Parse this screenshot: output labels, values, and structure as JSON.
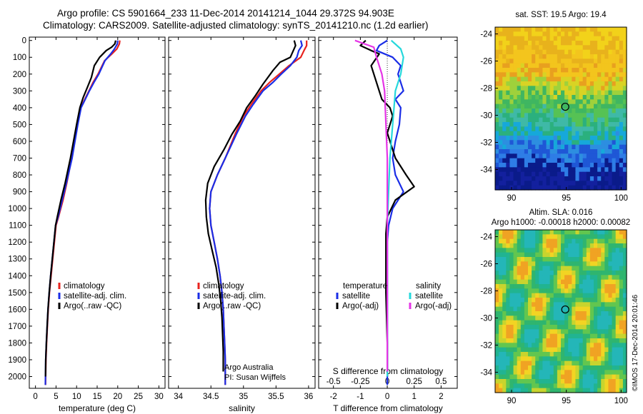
{
  "header": {
    "line1": "Argo profile: CS 5901664_233 11-Dec-2014 20141214_1044 29.372S 94.903E",
    "line2": "Climatology: CARS2009. Satellite-adjusted climatology: synTS_20141210.nc (1.2d earlier)"
  },
  "credits": {
    "org": "Argo Australia",
    "pi": "PI: Susan Wijffels",
    "copyright": "©IMOS 17-Dec-2014 20:01:46"
  },
  "colors": {
    "climatology": "#e8231e",
    "satellite": "#1a2de6",
    "argo": "#000000",
    "sat_salinity": "#25d8dc",
    "argo_salinity": "#e534e6"
  },
  "chart_data": [
    {
      "type": "line",
      "panel": "temperature",
      "xlabel": "temperature (deg C)",
      "xticks": [
        0,
        5,
        10,
        15,
        20,
        25,
        30
      ],
      "xlim": [
        -1.5,
        31.5
      ],
      "yticks": [
        0,
        100,
        200,
        300,
        400,
        500,
        600,
        700,
        800,
        900,
        1000,
        1100,
        1200,
        1300,
        1400,
        1500,
        1600,
        1700,
        1800,
        1900,
        2000
      ],
      "ylim": [
        2070,
        -20
      ],
      "y_reversed": true,
      "legend": [
        "climatology",
        "satellite-adj. clim.",
        "Argo(..raw -QC)"
      ],
      "series": [
        {
          "name": "climatology",
          "color": "#e8231e",
          "x": [
            20.5,
            20.4,
            19.8,
            18.6,
            16.8,
            15.2,
            14.0,
            13.0,
            12.0,
            11.0,
            10.2,
            8.8,
            7.6,
            6.7,
            5.6,
            5.0,
            4.6,
            4.2,
            3.8,
            3.4,
            3.1,
            2.9,
            2.7,
            2.55,
            2.45
          ],
          "y": [
            0,
            20,
            50,
            80,
            120,
            200,
            250,
            300,
            350,
            400,
            500,
            700,
            850,
            950,
            1050,
            1100,
            1200,
            1300,
            1400,
            1500,
            1600,
            1700,
            1800,
            1900,
            2050
          ]
        },
        {
          "name": "satellite-adj. clim.",
          "color": "#1a2de6",
          "x": [
            20.0,
            19.9,
            19.2,
            18.3,
            16.9,
            15.4,
            14.2,
            13.1,
            12.1,
            11.1,
            10.3,
            8.9,
            7.5,
            6.5,
            5.5,
            4.9,
            4.5,
            4.1,
            3.7,
            3.35,
            3.05,
            2.85,
            2.65,
            2.5,
            2.4
          ],
          "y": [
            0,
            20,
            50,
            80,
            120,
            200,
            250,
            300,
            350,
            400,
            500,
            700,
            850,
            950,
            1050,
            1100,
            1200,
            1300,
            1400,
            1500,
            1600,
            1700,
            1800,
            1900,
            2050
          ]
        },
        {
          "name": "Argo(..raw -QC)",
          "color": "#000000",
          "x": [
            19.5,
            19.3,
            18.5,
            17.2,
            15.6,
            14.3,
            13.6,
            12.6,
            11.6,
            10.8,
            10.0,
            8.5,
            7.2,
            6.2,
            5.3,
            4.9,
            4.5,
            4.1,
            3.7,
            3.35,
            3.05,
            2.85,
            2.65,
            2.5,
            2.45
          ],
          "y": [
            0,
            20,
            40,
            60,
            100,
            150,
            220,
            280,
            340,
            400,
            500,
            700,
            850,
            950,
            1050,
            1100,
            1200,
            1300,
            1400,
            1500,
            1600,
            1700,
            1800,
            1900,
            2000
          ]
        }
      ]
    },
    {
      "type": "line",
      "panel": "salinity",
      "xlabel": "salinity",
      "xticks": [
        34,
        34.5,
        35,
        35.5,
        36
      ],
      "xlim": [
        33.85,
        36.1
      ],
      "yticks": [
        0,
        100,
        200,
        300,
        400,
        500,
        600,
        700,
        800,
        900,
        1000,
        1100,
        1200,
        1300,
        1400,
        1500,
        1600,
        1700,
        1800,
        1900,
        2000
      ],
      "ylim": [
        2070,
        -20
      ],
      "y_reversed": true,
      "legend": [
        "climatology",
        "satellite-adj. clim.",
        "Argo(..raw -QC)"
      ],
      "series": [
        {
          "name": "climatology",
          "color": "#e8231e",
          "x": [
            35.97,
            35.97,
            35.93,
            35.88,
            35.7,
            35.55,
            35.4,
            35.27,
            35.12,
            35.0,
            34.88,
            34.72,
            34.6,
            34.5,
            34.48,
            34.5,
            34.55,
            34.6,
            34.64,
            34.67,
            34.69,
            34.7,
            34.71,
            34.72,
            34.72
          ],
          "y": [
            0,
            30,
            60,
            100,
            150,
            200,
            250,
            300,
            380,
            450,
            550,
            700,
            800,
            900,
            1000,
            1100,
            1200,
            1300,
            1400,
            1500,
            1600,
            1700,
            1800,
            1900,
            2050
          ]
        },
        {
          "name": "satellite-adj. clim.",
          "color": "#1a2de6",
          "x": [
            35.88,
            35.9,
            35.85,
            35.82,
            35.72,
            35.58,
            35.45,
            35.3,
            35.15,
            35.03,
            34.9,
            34.72,
            34.6,
            34.5,
            34.48,
            34.5,
            34.55,
            34.6,
            34.64,
            34.67,
            34.69,
            34.7,
            34.71,
            34.72,
            34.72
          ],
          "y": [
            0,
            30,
            60,
            100,
            150,
            200,
            250,
            300,
            380,
            450,
            550,
            700,
            800,
            900,
            1000,
            1100,
            1200,
            1300,
            1400,
            1500,
            1600,
            1700,
            1800,
            1900,
            2050
          ]
        },
        {
          "name": "Argo(..raw -QC)",
          "color": "#000000",
          "x": [
            35.78,
            35.8,
            35.72,
            35.56,
            35.45,
            35.3,
            35.18,
            35.05,
            34.95,
            34.82,
            34.7,
            34.55,
            34.45,
            34.42,
            34.43,
            34.46,
            34.52,
            34.58,
            34.62,
            34.65,
            34.67,
            34.68,
            34.69,
            34.69
          ],
          "y": [
            0,
            30,
            100,
            130,
            180,
            260,
            330,
            400,
            480,
            560,
            650,
            750,
            850,
            950,
            1050,
            1150,
            1250,
            1350,
            1450,
            1550,
            1650,
            1750,
            1850,
            1970
          ]
        }
      ]
    },
    {
      "type": "line",
      "panel": "difference",
      "xlabel": "T difference from climatology",
      "xticks": [
        -2,
        -1,
        0,
        1,
        2
      ],
      "xlim": [
        -2.55,
        2.6
      ],
      "x2label": "S difference from climatology",
      "x2ticks": [
        "-0.5",
        "-0.25",
        "0",
        "0.25",
        "0.5"
      ],
      "yticks": [
        0,
        100,
        200,
        300,
        400,
        500,
        600,
        700,
        800,
        900,
        1000,
        1100,
        1200,
        1300,
        1400,
        1500,
        1600,
        1700,
        1800,
        1900,
        2000
      ],
      "ylim": [
        2070,
        -20
      ],
      "y_reversed": true,
      "legend_temperature_title": "temperature",
      "legend_salinity_title": "salinity",
      "legend_temperature": [
        "satellite",
        "Argo(-adj)"
      ],
      "legend_salinity": [
        "satellite",
        "Argo(-adj)"
      ],
      "series": [
        {
          "name": "temperature satellite",
          "color": "#1a2de6",
          "x": [
            0.0,
            -0.3,
            -0.4,
            0.2,
            0.5,
            0.4,
            0.6,
            0.3,
            0.5,
            0.45,
            0.3,
            0.2,
            0.3,
            0.6,
            0.2,
            0.05,
            0.0,
            0.0,
            0.0,
            0.0,
            0.0,
            0.0,
            0.0
          ],
          "y": [
            0,
            30,
            60,
            100,
            150,
            200,
            300,
            350,
            400,
            500,
            600,
            700,
            800,
            900,
            1000,
            1100,
            1200,
            1300,
            1400,
            1600,
            1800,
            1950,
            2050
          ]
        },
        {
          "name": "temperature Argo(-adj)",
          "color": "#000000",
          "x": [
            -0.8,
            -1.0,
            -0.6,
            -0.3,
            -0.6,
            -0.4,
            -0.2,
            0.1,
            0.2,
            0.0,
            0.3,
            0.7,
            1.0,
            0.3,
            0.0,
            -0.05,
            -0.05,
            -0.05,
            0.0,
            0.0
          ],
          "y": [
            0,
            30,
            60,
            80,
            150,
            250,
            350,
            400,
            450,
            550,
            700,
            800,
            870,
            950,
            1050,
            1150,
            1300,
            1500,
            1800,
            2000
          ]
        },
        {
          "name": "salinity satellite",
          "color": "#25d8dc",
          "x": [
            0.15,
            0.5,
            0.6,
            0.5,
            0.3,
            0.2,
            0.1,
            0.05,
            0.0,
            0.0,
            0.0,
            0.0,
            0.0
          ],
          "y": [
            0,
            50,
            100,
            200,
            300,
            500,
            700,
            900,
            1100,
            1300,
            1600,
            1800,
            2000
          ]
        },
        {
          "name": "salinity Argo(-adj)",
          "color": "#e534e6",
          "x": [
            -1.2,
            -0.5,
            -0.4,
            -0.2,
            -0.1,
            -0.05,
            0.0,
            0.0,
            0.0,
            0.0,
            0.0,
            0.0,
            0.0
          ],
          "y": [
            0,
            40,
            100,
            200,
            300,
            500,
            700,
            900,
            1100,
            1300,
            1600,
            1800,
            1970
          ]
        }
      ]
    },
    {
      "type": "heatmap",
      "panel": "satellite SST map",
      "title": "sat. SST: 19.5  Argo: 19.4",
      "xticks": [
        90,
        95,
        100
      ],
      "yticks": [
        -24,
        -26,
        -28,
        -30,
        -32,
        -34
      ],
      "xlim": [
        88.5,
        100.5
      ],
      "ylim": [
        -35.5,
        -23.5
      ],
      "marker": {
        "lon": 94.903,
        "lat": -29.372
      }
    },
    {
      "type": "heatmap",
      "panel": "altimetry SLA map",
      "title": "Altim. SLA: 0.016",
      "subtitle": "Argo h1000: -0.00018 h2000: 0.00082",
      "xticks": [
        90,
        95,
        100
      ],
      "yticks": [
        -24,
        -26,
        -28,
        -30,
        -32,
        -34
      ],
      "xlim": [
        88.5,
        100.5
      ],
      "ylim": [
        -35.5,
        -23.5
      ],
      "marker": {
        "lon": 94.903,
        "lat": -29.372
      }
    }
  ]
}
